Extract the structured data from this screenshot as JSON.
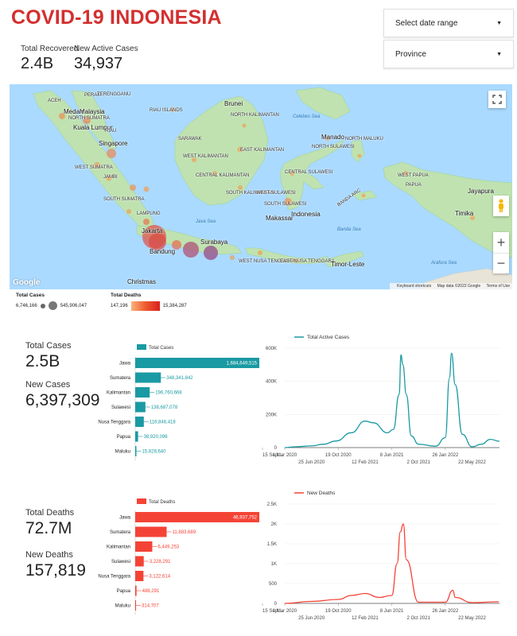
{
  "header": {
    "title": "COVID-19 INDONESIA",
    "total_recovered_label": "Total Recovered",
    "total_recovered_value": "2.4B",
    "new_active_label": "New Active Cases",
    "new_active_value": "34,937"
  },
  "controls": {
    "date_range": "Select date range",
    "province": "Province"
  },
  "map": {
    "labels": {
      "malaysia": "Malaysia",
      "singapore": "Singapore",
      "kuala_lumpur": "Kuala Lumpur",
      "medan": "Medan",
      "aceh": "ACEH",
      "north_sumatra": "NORTH SUMATRA",
      "perak": "PERAK",
      "terengganu": "TERENGGANU",
      "riau_islands": "RIAU ISLANDS",
      "riau": "RIAU",
      "west_sumatra": "WEST SUMATRA",
      "jambi": "JAMBI",
      "south_sumatra": "SOUTH SUMATRA",
      "lampung": "LAMPUNG",
      "jakarta": "Jakarta",
      "bandung": "Bandung",
      "surabaya": "Surabaya",
      "brunei": "Brunei",
      "sarawak": "SARAWAK",
      "north_kalimantan": "NORTH KALIMANTAN",
      "east_kalimantan": "EAST KALIMANTAN",
      "west_kalimantan": "WEST KALIMANTAN",
      "central_kalimantan": "CENTRAL KALIMANTAN",
      "south_kalimantan": "SOUTH KALIMANTAN",
      "celebes_sea": "Celebes Sea",
      "manado": "Manado",
      "north_maluku": "NORTH MALUKU",
      "north_sulawesi": "NORTH SULAWESI",
      "central_sulawesi": "CENTRAL SULAWESI",
      "west_sulawesi": "WEST SULAWESI",
      "south_sulawesi": "SOUTH SULAWESI",
      "makassar": "Makassar",
      "indonesia": "Indonesia",
      "west_papua": "WEST PAPUA",
      "papua": "PAPUA",
      "jayapura": "Jayapura",
      "timika": "Timika",
      "java_sea": "Java Sea",
      "banda_sea": "Banda Sea",
      "banda_arc": "BANDA ARC",
      "west_nusa_tenggara": "WEST NUSA TENGGARA",
      "east_nusa_tenggara": "EAST NUSA TENGGARA",
      "timor_leste": "Timor-Leste",
      "arafura_sea": "Arafura Sea",
      "christmas": "Christmas",
      "google": "Google",
      "keyboard": "Keyboard shortcuts",
      "map_data": "Map data ©2022 Google",
      "terms": "Terms of Use"
    },
    "icons": [
      "fullscreen-icon",
      "pegman-icon",
      "zoom-in-icon",
      "zoom-out-icon"
    ]
  },
  "legend": {
    "cases_title": "Total Cases",
    "cases_min": "6,746,166",
    "cases_max": "545,906,047",
    "deaths_title": "Total Deaths",
    "deaths_min": "147,196",
    "deaths_max": "15,384,287"
  },
  "cases_section": {
    "total_label": "Total Cases",
    "total_value": "2.5B",
    "new_label": "New Cases",
    "new_value": "6,397,309"
  },
  "deaths_section": {
    "total_label": "Total Deaths",
    "total_value": "72.7M",
    "new_label": "New Deaths",
    "new_value": "157,819"
  },
  "colors": {
    "teal": "#1a9aa3",
    "red": "#f44336",
    "title_red": "#d32f2f"
  },
  "chart_data": [
    {
      "type": "bar",
      "orientation": "horizontal",
      "legend": "Total Cases",
      "color": "#1a9aa3",
      "categories": [
        "Jawa",
        "Sumatera",
        "Kalimantan",
        "Sulawesi",
        "Nusa Tenggara",
        "Papua",
        "Maluku"
      ],
      "values": [
        1684649515,
        348341842,
        196760668,
        138687078,
        116846418,
        38920096,
        15828640
      ],
      "value_labels": [
        "1,684,649,515",
        "348,341,842",
        "196,760,668",
        "138,687,078",
        "116,846,418",
        "38,920,096",
        "15,828,640"
      ]
    },
    {
      "type": "line",
      "legend": "Total Active Cases",
      "color": "#1a9aa3",
      "x": [
        "1 Mar 2020",
        "15 Apr 2020",
        "25 Jun 2020",
        "15 Aug 2020",
        "10 Oct 2020",
        "15 Dec 2020",
        "12 Feb 2021",
        "20 Mar 2021",
        "20 May 2021",
        "15 Jun 2021",
        "10 Jul 2021",
        "18 Jul 2021",
        "26 Jul 2021",
        "10 Aug 2021",
        "1 Sep 2021",
        "2 Oct 2021",
        "15 Dec 2021",
        "26 Jan 2022",
        "13 Feb 2022",
        "22 Feb 2022",
        "10 Mar 2022",
        "10 Apr 2022",
        "22 May 2022",
        "1 Jul 2022",
        "10 Aug 2022",
        "18 Sep 2022"
      ],
      "y": [
        0,
        5000,
        10000,
        20000,
        40000,
        90000,
        160000,
        150000,
        90000,
        110000,
        320000,
        560000,
        500000,
        320000,
        70000,
        20000,
        8000,
        60000,
        420000,
        570000,
        380000,
        80000,
        5000,
        20000,
        50000,
        38000
      ],
      "ylim": [
        0,
        600000
      ],
      "yticks": [
        "0",
        "200K",
        "400K",
        "600K"
      ],
      "xticks_top": [
        "1 Mar 2020",
        "19 Oct 2020",
        "8 Jun 2021",
        "26 Jan 2022",
        "15 Sept..."
      ],
      "xticks_bottom": [
        "25 Jun 2020",
        "12 Feb 2021",
        "2 Oct 2021",
        "22 May 2022"
      ]
    },
    {
      "type": "bar",
      "orientation": "horizontal",
      "legend": "Total Deaths",
      "color": "#f44336",
      "categories": [
        "Jawa",
        "Sumatera",
        "Kalimantan",
        "Sulawesi",
        "Nusa Tenggara",
        "Papua",
        "Maluku"
      ],
      "values": [
        46937752,
        11883689,
        6449253,
        3228291,
        3122614,
        488291,
        314707
      ],
      "value_labels": [
        "46,937,752",
        "11,883,689",
        "6,449,253",
        "3,228,291",
        "3,122,614",
        "488,291",
        "314,707"
      ]
    },
    {
      "type": "line",
      "legend": "New Deaths",
      "color": "#f44336",
      "x": [
        "1 Mar 2020",
        "25 Jun 2020",
        "19 Oct 2020",
        "15 Dec 2020",
        "12 Feb 2021",
        "15 Apr 2021",
        "8 Jun 2021",
        "1 Jul 2021",
        "15 Jul 2021",
        "28 Jul 2021",
        "10 Aug 2021",
        "2 Oct 2021",
        "26 Jan 2022",
        "28 Feb 2022",
        "10 Mar 2022",
        "22 May 2022",
        "15 Sept 2022"
      ],
      "y": [
        0,
        50,
        100,
        200,
        250,
        150,
        200,
        1000,
        1800,
        2000,
        1100,
        30,
        30,
        330,
        150,
        20,
        40
      ],
      "ylim": [
        0,
        2500
      ],
      "yticks": [
        "0",
        "500",
        "1K",
        "1.5K",
        "2K",
        "2.5K"
      ],
      "xticks_top": [
        "1 Mar 2020",
        "19 Oct 2020",
        "8 Jun 2021",
        "26 Jan 2022",
        "15 Sept..."
      ],
      "xticks_bottom": [
        "25 Jun 2020",
        "12 Feb 2021",
        "2 Oct 2021",
        "22 May 2022"
      ]
    }
  ]
}
